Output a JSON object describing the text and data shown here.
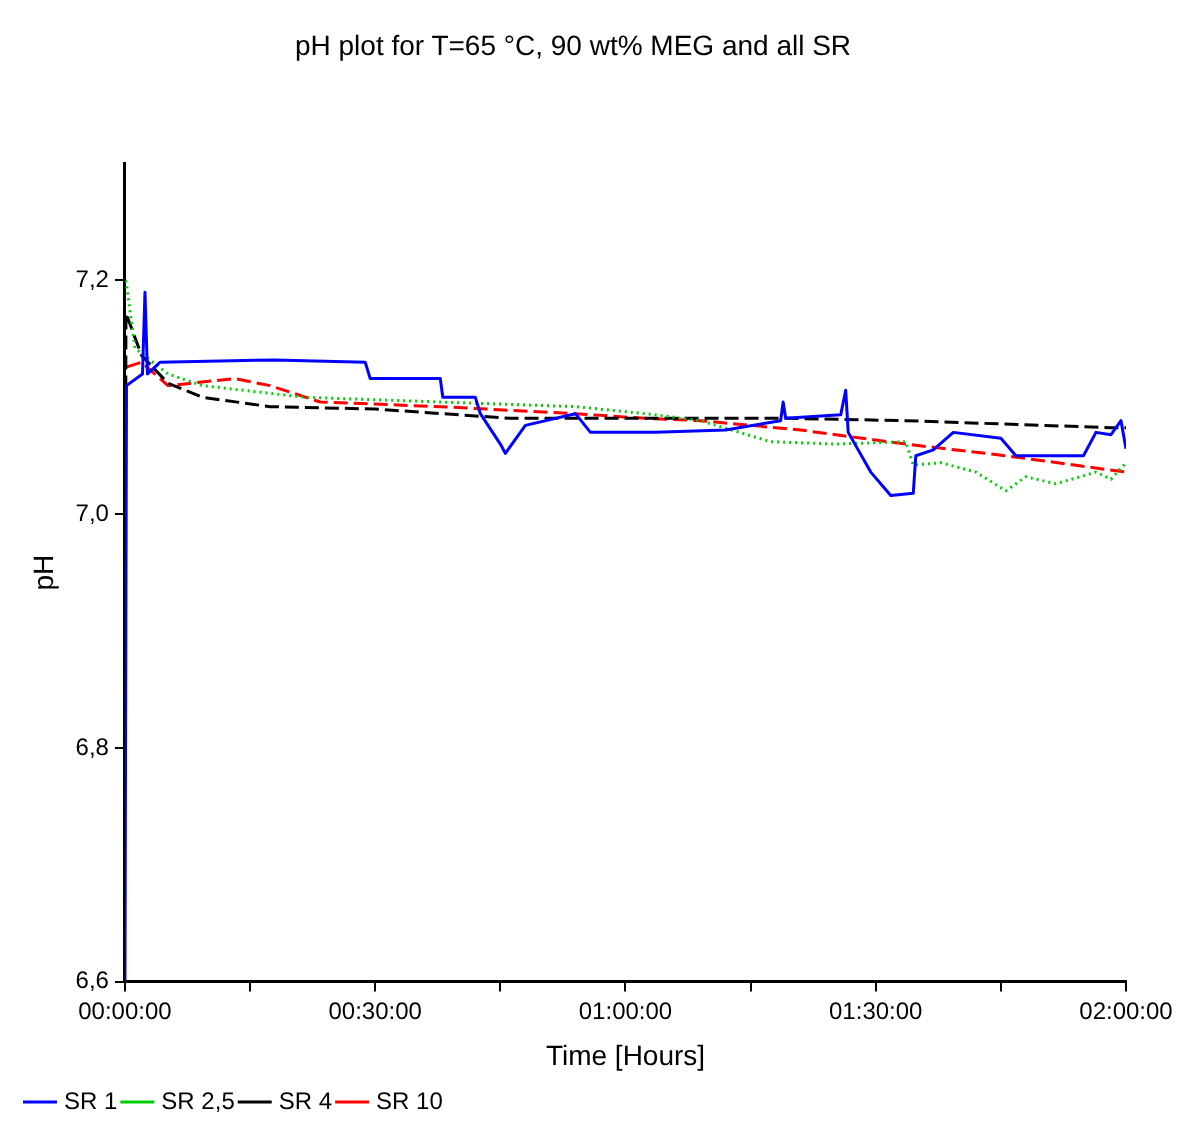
{
  "chart_data": {
    "type": "line",
    "title": "pH plot for T=65 °C, 90 wt% MEG and all SR",
    "xlabel": "Time [Hours]",
    "ylabel": "pH",
    "xlim": [
      0,
      2
    ],
    "xticks": [
      {
        "value": 0,
        "label": "00:00:00"
      },
      {
        "value": 0.25,
        "label": null
      },
      {
        "value": 0.5,
        "label": "00:30:00"
      },
      {
        "value": 0.75,
        "label": null
      },
      {
        "value": 1,
        "label": "01:00:00"
      },
      {
        "value": 1.25,
        "label": null
      },
      {
        "value": 1.5,
        "label": "01:30:00"
      },
      {
        "value": 1.75,
        "label": null
      },
      {
        "value": 2,
        "label": "02:00:00"
      }
    ],
    "ylim": [
      6.6,
      7.3
    ],
    "yticks": [
      {
        "value": 6.6,
        "label": "6,6"
      },
      {
        "value": 6.8,
        "label": "6,8"
      },
      {
        "value": 7.0,
        "label": "7,0"
      },
      {
        "value": 7.2,
        "label": "7,2"
      }
    ],
    "grid": false,
    "legend": "bottom left",
    "series": [
      {
        "name": "SR 1",
        "color": "#0000ff",
        "line_style": "solid",
        "x": [
          0,
          0.003,
          0.035,
          0.04,
          0.045,
          0.07,
          0.3,
          0.48,
          0.49,
          0.63,
          0.635,
          0.7,
          0.71,
          0.75,
          0.76,
          0.8,
          0.9,
          0.93,
          1.06,
          1.2,
          1.31,
          1.315,
          1.32,
          1.43,
          1.44,
          1.445,
          1.49,
          1.53,
          1.575,
          1.58,
          1.615,
          1.655,
          1.75,
          1.78,
          1.915,
          1.94,
          1.97,
          1.99,
          2.0
        ],
        "values": [
          6.6,
          7.11,
          7.12,
          7.19,
          7.12,
          7.13,
          7.132,
          7.13,
          7.116,
          7.116,
          7.1,
          7.1,
          7.086,
          7.06,
          7.052,
          7.076,
          7.086,
          7.07,
          7.07,
          7.072,
          7.08,
          7.096,
          7.082,
          7.085,
          7.106,
          7.07,
          7.036,
          7.016,
          7.018,
          7.05,
          7.055,
          7.07,
          7.065,
          7.05,
          7.05,
          7.07,
          7.068,
          7.08,
          7.056
        ]
      },
      {
        "name": "SR 2,5",
        "color": "#00cc00",
        "line_style": "dotted",
        "x": [
          0.002,
          0.02,
          0.086,
          0.155,
          0.36,
          0.63,
          0.9,
          1.04,
          1.15,
          1.29,
          1.42,
          1.56,
          1.575,
          1.63,
          1.7,
          1.76,
          1.8,
          1.86,
          1.94,
          1.97,
          2.0
        ],
        "values": [
          7.2,
          7.142,
          7.12,
          7.11,
          7.1,
          7.096,
          7.092,
          7.086,
          7.08,
          7.062,
          7.06,
          7.062,
          7.042,
          7.044,
          7.036,
          7.02,
          7.032,
          7.026,
          7.036,
          7.03,
          7.044
        ]
      },
      {
        "name": "SR 4",
        "color": "#000000",
        "line_style": "dashed",
        "x": [
          0,
          0.002,
          0.033,
          0.086,
          0.155,
          0.29,
          0.5,
          0.77,
          1.04,
          1.33,
          1.56,
          1.97,
          2.0
        ],
        "values": [
          6.85,
          7.172,
          7.136,
          7.112,
          7.1,
          7.092,
          7.09,
          7.082,
          7.082,
          7.082,
          7.08,
          7.074,
          7.074
        ]
      },
      {
        "name": "SR 10",
        "color": "#ff0000",
        "line_style": "dashed",
        "x": [
          0.004,
          0.033,
          0.086,
          0.22,
          0.29,
          0.39,
          0.63,
          0.9,
          1.04,
          1.15,
          1.35,
          1.56,
          1.76,
          2.0
        ],
        "values": [
          7.126,
          7.13,
          7.11,
          7.116,
          7.11,
          7.096,
          7.092,
          7.086,
          7.082,
          7.08,
          7.072,
          7.06,
          7.05,
          7.036
        ]
      }
    ]
  }
}
